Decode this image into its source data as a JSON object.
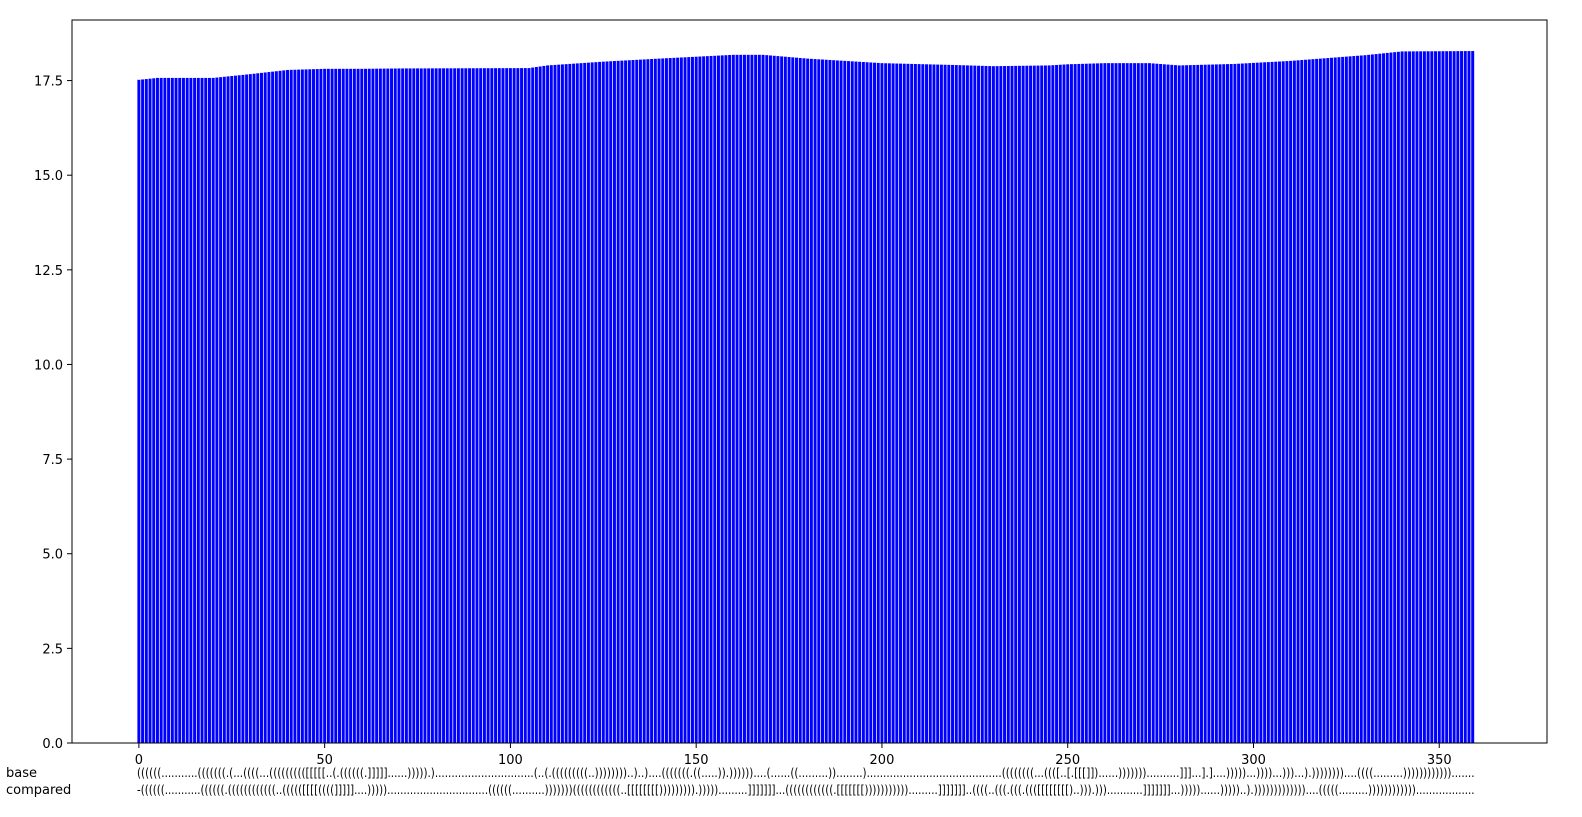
{
  "chart_data": {
    "type": "bar",
    "title": "",
    "xlabel": "",
    "ylabel": "",
    "n_bars": 360,
    "xlim": [
      -18,
      379
    ],
    "ylim": [
      0,
      19.1
    ],
    "bar_color": "#0000ff",
    "grid": false,
    "xticks": [
      0,
      50,
      100,
      150,
      200,
      250,
      300,
      350
    ],
    "xtick_labels": [
      "0",
      "50",
      "100",
      "150",
      "200",
      "250",
      "300",
      "350"
    ],
    "yticks": [
      0,
      2.5,
      5,
      7.5,
      10,
      12.5,
      15,
      17.5
    ],
    "ytick_labels": [
      "0.0",
      "2.5",
      "5.0",
      "7.5",
      "10.0",
      "12.5",
      "15.0",
      "17.5"
    ],
    "value_profile": [
      [
        0,
        17.52
      ],
      [
        5,
        17.57
      ],
      [
        20,
        17.57
      ],
      [
        30,
        17.67
      ],
      [
        40,
        17.78
      ],
      [
        50,
        17.81
      ],
      [
        60,
        17.81
      ],
      [
        70,
        17.82
      ],
      [
        105,
        17.83
      ],
      [
        110,
        17.9
      ],
      [
        125,
        18.0
      ],
      [
        140,
        18.08
      ],
      [
        150,
        18.13
      ],
      [
        160,
        18.18
      ],
      [
        168,
        18.18
      ],
      [
        180,
        18.08
      ],
      [
        200,
        17.96
      ],
      [
        220,
        17.91
      ],
      [
        230,
        17.88
      ],
      [
        245,
        17.9
      ],
      [
        250,
        17.93
      ],
      [
        260,
        17.96
      ],
      [
        272,
        17.96
      ],
      [
        280,
        17.9
      ],
      [
        295,
        17.94
      ],
      [
        310,
        18.02
      ],
      [
        330,
        18.17
      ],
      [
        340,
        18.27
      ],
      [
        359,
        18.28
      ]
    ],
    "sequence_rows": [
      {
        "label": "base",
        "text": "((((((...........(((((((.(...((((...((((((((([[[[[..(.((((((.]]]]]......))))).)..............................(..(.(((((((((..))))))))..)..)....(((((((.((.....)).))))))....(......((.........))........).........................................((((((((...((([..[.[[[]])......)))))))..........]]]...].]....)))))...))))...)))...).))))))))....((((.........))))))))))))......."
      },
      {
        "label": "compared",
        "text": "-((((((...........((((((.((((((((((((..((((([[[[((((]]]]]....)))))...............................((((((..........)))))))((((((((((((..[[[[[[[[))))))))).))))).........]]]]]]]...((((((((((((.[[[[[[[))))))))))).........]]]]]]]..((((..(((.(((.((([[[[[[[[)..))).)))...........]]]]]]]...)))))......)))))..).)))))))))))))....(((((.........)))))))))))).................."
      }
    ]
  }
}
